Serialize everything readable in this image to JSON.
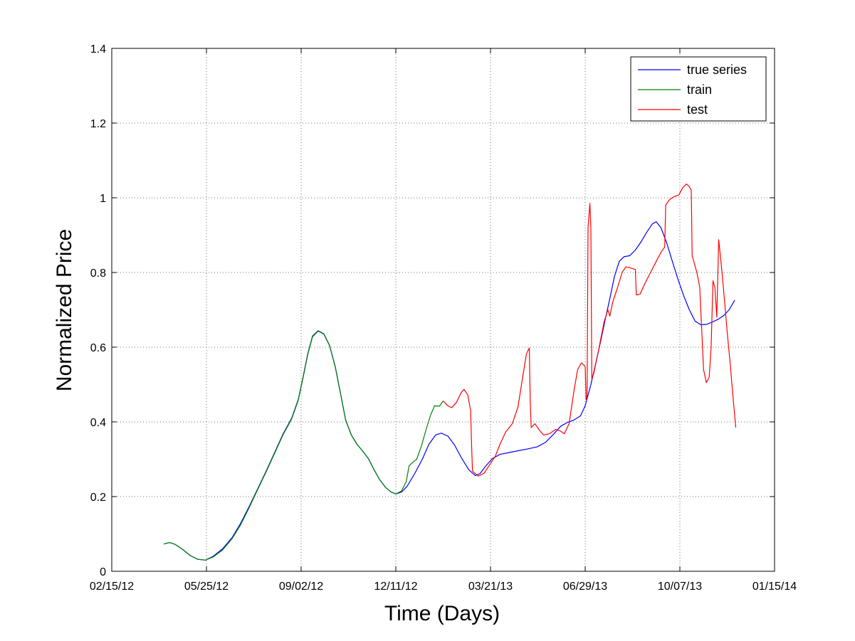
{
  "chart_data": {
    "type": "line",
    "title": "",
    "xlabel": "Time (Days)",
    "ylabel": "Normalized Price",
    "x_type": "date",
    "xlim": [
      "2012-02-15",
      "2014-01-15"
    ],
    "ylim": [
      0,
      1.4
    ],
    "xticks": [
      {
        "date": "2012-02-15",
        "label": "02/15/12"
      },
      {
        "date": "2012-05-25",
        "label": "05/25/12"
      },
      {
        "date": "2012-09-02",
        "label": "09/02/12"
      },
      {
        "date": "2012-12-11",
        "label": "12/11/12"
      },
      {
        "date": "2013-03-21",
        "label": "03/21/13"
      },
      {
        "date": "2013-06-29",
        "label": "06/29/13"
      },
      {
        "date": "2013-10-07",
        "label": "10/07/13"
      },
      {
        "date": "2014-01-15",
        "label": "01/15/14"
      }
    ],
    "yticks": [
      {
        "value": 0,
        "label": "0"
      },
      {
        "value": 0.2,
        "label": "0.2"
      },
      {
        "value": 0.4,
        "label": "0.4"
      },
      {
        "value": 0.6,
        "label": "0.6"
      },
      {
        "value": 0.8,
        "label": "0.8"
      },
      {
        "value": 1.0,
        "label": "1"
      },
      {
        "value": 1.2,
        "label": "1.2"
      },
      {
        "value": 1.4,
        "label": "1.4"
      }
    ],
    "grid": true,
    "legend_position": "top-right",
    "series": [
      {
        "name": "true series",
        "color": "#0000ff",
        "points": [
          [
            "2012-04-10",
            0.073
          ],
          [
            "2012-04-16",
            0.077
          ],
          [
            "2012-04-22",
            0.072
          ],
          [
            "2012-04-30",
            0.058
          ],
          [
            "2012-05-08",
            0.042
          ],
          [
            "2012-05-16",
            0.032
          ],
          [
            "2012-05-24",
            0.03
          ],
          [
            "2012-06-01",
            0.04
          ],
          [
            "2012-06-11",
            0.06
          ],
          [
            "2012-06-21",
            0.09
          ],
          [
            "2012-06-30",
            0.128
          ],
          [
            "2012-07-09",
            0.173
          ],
          [
            "2012-07-18",
            0.22
          ],
          [
            "2012-07-27",
            0.268
          ],
          [
            "2012-08-05",
            0.318
          ],
          [
            "2012-08-14",
            0.368
          ],
          [
            "2012-08-23",
            0.41
          ],
          [
            "2012-08-30",
            0.46
          ],
          [
            "2012-09-04",
            0.52
          ],
          [
            "2012-09-09",
            0.582
          ],
          [
            "2012-09-14",
            0.63
          ],
          [
            "2012-09-20",
            0.644
          ],
          [
            "2012-09-26",
            0.636
          ],
          [
            "2012-10-02",
            0.605
          ],
          [
            "2012-10-08",
            0.548
          ],
          [
            "2012-10-14",
            0.47
          ],
          [
            "2012-10-19",
            0.405
          ],
          [
            "2012-10-25",
            0.365
          ],
          [
            "2012-10-31",
            0.34
          ],
          [
            "2012-11-06",
            0.322
          ],
          [
            "2012-11-12",
            0.302
          ],
          [
            "2012-11-18",
            0.272
          ],
          [
            "2012-11-24",
            0.245
          ],
          [
            "2012-11-30",
            0.225
          ],
          [
            "2012-12-06",
            0.212
          ],
          [
            "2012-12-11",
            0.207
          ],
          [
            "2012-12-17",
            0.212
          ],
          [
            "2012-12-23",
            0.228
          ],
          [
            "2012-12-31",
            0.262
          ],
          [
            "2013-01-08",
            0.3
          ],
          [
            "2013-01-15",
            0.34
          ],
          [
            "2013-01-22",
            0.365
          ],
          [
            "2013-01-28",
            0.37
          ],
          [
            "2013-02-04",
            0.362
          ],
          [
            "2013-02-11",
            0.338
          ],
          [
            "2013-02-18",
            0.305
          ],
          [
            "2013-02-26",
            0.272
          ],
          [
            "2013-03-05",
            0.256
          ],
          [
            "2013-03-10",
            0.262
          ],
          [
            "2013-03-16",
            0.282
          ],
          [
            "2013-03-23",
            0.302
          ],
          [
            "2013-03-31",
            0.313
          ],
          [
            "2013-04-10",
            0.318
          ],
          [
            "2013-04-20",
            0.323
          ],
          [
            "2013-04-30",
            0.328
          ],
          [
            "2013-05-09",
            0.333
          ],
          [
            "2013-05-18",
            0.345
          ],
          [
            "2013-05-27",
            0.368
          ],
          [
            "2013-06-03",
            0.388
          ],
          [
            "2013-06-10",
            0.398
          ],
          [
            "2013-06-17",
            0.405
          ],
          [
            "2013-06-24",
            0.416
          ],
          [
            "2013-06-29",
            0.443
          ],
          [
            "2013-07-05",
            0.5
          ],
          [
            "2013-07-10",
            0.555
          ],
          [
            "2013-07-15",
            0.612
          ],
          [
            "2013-07-20",
            0.672
          ],
          [
            "2013-07-25",
            0.73
          ],
          [
            "2013-07-30",
            0.79
          ],
          [
            "2013-08-04",
            0.83
          ],
          [
            "2013-08-09",
            0.842
          ],
          [
            "2013-08-15",
            0.845
          ],
          [
            "2013-08-21",
            0.86
          ],
          [
            "2013-08-27",
            0.882
          ],
          [
            "2013-09-02",
            0.908
          ],
          [
            "2013-09-08",
            0.93
          ],
          [
            "2013-09-12",
            0.936
          ],
          [
            "2013-09-17",
            0.92
          ],
          [
            "2013-09-23",
            0.88
          ],
          [
            "2013-09-29",
            0.83
          ],
          [
            "2013-10-05",
            0.782
          ],
          [
            "2013-10-11",
            0.738
          ],
          [
            "2013-10-17",
            0.7
          ],
          [
            "2013-10-23",
            0.67
          ],
          [
            "2013-10-29",
            0.66
          ],
          [
            "2013-11-04",
            0.661
          ],
          [
            "2013-11-10",
            0.667
          ],
          [
            "2013-11-16",
            0.674
          ],
          [
            "2013-11-22",
            0.684
          ],
          [
            "2013-11-28",
            0.7
          ],
          [
            "2013-12-04",
            0.726
          ]
        ]
      },
      {
        "name": "train",
        "color": "#008000",
        "points": [
          [
            "2012-04-10",
            0.073
          ],
          [
            "2012-04-16",
            0.077
          ],
          [
            "2012-04-22",
            0.072
          ],
          [
            "2012-04-30",
            0.058
          ],
          [
            "2012-05-08",
            0.042
          ],
          [
            "2012-05-16",
            0.032
          ],
          [
            "2012-05-24",
            0.03
          ],
          [
            "2012-06-01",
            0.038
          ],
          [
            "2012-06-11",
            0.057
          ],
          [
            "2012-06-21",
            0.087
          ],
          [
            "2012-06-30",
            0.124
          ],
          [
            "2012-07-09",
            0.17
          ],
          [
            "2012-07-18",
            0.218
          ],
          [
            "2012-07-27",
            0.266
          ],
          [
            "2012-08-05",
            0.316
          ],
          [
            "2012-08-14",
            0.366
          ],
          [
            "2012-08-23",
            0.408
          ],
          [
            "2012-08-30",
            0.458
          ],
          [
            "2012-09-04",
            0.518
          ],
          [
            "2012-09-09",
            0.58
          ],
          [
            "2012-09-14",
            0.628
          ],
          [
            "2012-09-20",
            0.643
          ],
          [
            "2012-09-26",
            0.635
          ],
          [
            "2012-10-02",
            0.604
          ],
          [
            "2012-10-08",
            0.547
          ],
          [
            "2012-10-14",
            0.47
          ],
          [
            "2012-10-19",
            0.405
          ],
          [
            "2012-10-25",
            0.365
          ],
          [
            "2012-10-31",
            0.34
          ],
          [
            "2012-11-06",
            0.322
          ],
          [
            "2012-11-12",
            0.302
          ],
          [
            "2012-11-18",
            0.272
          ],
          [
            "2012-11-24",
            0.245
          ],
          [
            "2012-11-30",
            0.225
          ],
          [
            "2012-12-06",
            0.212
          ],
          [
            "2012-12-11",
            0.207
          ],
          [
            "2012-12-17",
            0.215
          ],
          [
            "2012-12-22",
            0.24
          ],
          [
            "2012-12-25",
            0.282
          ],
          [
            "2012-12-29",
            0.292
          ],
          [
            "2013-01-02",
            0.3
          ],
          [
            "2013-01-07",
            0.335
          ],
          [
            "2013-01-12",
            0.38
          ],
          [
            "2013-01-17",
            0.42
          ],
          [
            "2013-01-21",
            0.443
          ],
          [
            "2013-01-26",
            0.442
          ],
          [
            "2013-01-30",
            0.456
          ]
        ]
      },
      {
        "name": "test",
        "color": "#ff0000",
        "points": [
          [
            "2013-01-30",
            0.456
          ],
          [
            "2013-02-04",
            0.443
          ],
          [
            "2013-02-08",
            0.438
          ],
          [
            "2013-02-13",
            0.452
          ],
          [
            "2013-02-18",
            0.478
          ],
          [
            "2013-02-21",
            0.487
          ],
          [
            "2013-02-25",
            0.472
          ],
          [
            "2013-02-28",
            0.43
          ],
          [
            "2013-03-01",
            0.34
          ],
          [
            "2013-03-02",
            0.268
          ],
          [
            "2013-03-08",
            0.255
          ],
          [
            "2013-03-14",
            0.262
          ],
          [
            "2013-03-20",
            0.285
          ],
          [
            "2013-03-26",
            0.308
          ],
          [
            "2013-03-31",
            0.34
          ],
          [
            "2013-04-06",
            0.373
          ],
          [
            "2013-04-13",
            0.395
          ],
          [
            "2013-04-19",
            0.44
          ],
          [
            "2013-04-24",
            0.52
          ],
          [
            "2013-04-28",
            0.582
          ],
          [
            "2013-05-01",
            0.598
          ],
          [
            "2013-05-02",
            0.45
          ],
          [
            "2013-05-03",
            0.385
          ],
          [
            "2013-05-07",
            0.395
          ],
          [
            "2013-05-11",
            0.38
          ],
          [
            "2013-05-16",
            0.365
          ],
          [
            "2013-05-22",
            0.368
          ],
          [
            "2013-05-29",
            0.38
          ],
          [
            "2013-06-03",
            0.375
          ],
          [
            "2013-06-07",
            0.368
          ],
          [
            "2013-06-12",
            0.395
          ],
          [
            "2013-06-17",
            0.48
          ],
          [
            "2013-06-21",
            0.54
          ],
          [
            "2013-06-25",
            0.558
          ],
          [
            "2013-06-29",
            0.548
          ],
          [
            "2013-06-30",
            0.46
          ],
          [
            "2013-07-01",
            0.47
          ],
          [
            "2013-07-02",
            0.92
          ],
          [
            "2013-07-04",
            0.985
          ],
          [
            "2013-07-05",
            0.92
          ],
          [
            "2013-07-06",
            0.515
          ],
          [
            "2013-07-08",
            0.53
          ],
          [
            "2013-07-13",
            0.59
          ],
          [
            "2013-07-19",
            0.668
          ],
          [
            "2013-07-23",
            0.7
          ],
          [
            "2013-07-25",
            0.683
          ],
          [
            "2013-07-28",
            0.72
          ],
          [
            "2013-08-02",
            0.758
          ],
          [
            "2013-08-07",
            0.8
          ],
          [
            "2013-08-11",
            0.815
          ],
          [
            "2013-08-16",
            0.812
          ],
          [
            "2013-08-21",
            0.808
          ],
          [
            "2013-08-22",
            0.74
          ],
          [
            "2013-08-26",
            0.742
          ],
          [
            "2013-08-31",
            0.77
          ],
          [
            "2013-09-06",
            0.8
          ],
          [
            "2013-09-12",
            0.83
          ],
          [
            "2013-09-18",
            0.858
          ],
          [
            "2013-09-21",
            0.868
          ],
          [
            "2013-09-22",
            0.98
          ],
          [
            "2013-09-26",
            0.995
          ],
          [
            "2013-10-01",
            1.003
          ],
          [
            "2013-10-06",
            1.008
          ],
          [
            "2013-10-10",
            1.027
          ],
          [
            "2013-10-14",
            1.037
          ],
          [
            "2013-10-17",
            1.03
          ],
          [
            "2013-10-19",
            1.02
          ],
          [
            "2013-10-20",
            0.845
          ],
          [
            "2013-10-25",
            0.8
          ],
          [
            "2013-10-28",
            0.76
          ],
          [
            "2013-10-30",
            0.65
          ],
          [
            "2013-11-01",
            0.54
          ],
          [
            "2013-11-04",
            0.505
          ],
          [
            "2013-11-07",
            0.52
          ],
          [
            "2013-11-09",
            0.6
          ],
          [
            "2013-11-11",
            0.778
          ],
          [
            "2013-11-13",
            0.76
          ],
          [
            "2013-11-15",
            0.68
          ],
          [
            "2013-11-17",
            0.888
          ],
          [
            "2013-11-20",
            0.815
          ],
          [
            "2013-11-23",
            0.73
          ],
          [
            "2013-11-26",
            0.64
          ],
          [
            "2013-11-29",
            0.56
          ],
          [
            "2013-12-02",
            0.47
          ],
          [
            "2013-12-05",
            0.385
          ]
        ]
      }
    ]
  }
}
